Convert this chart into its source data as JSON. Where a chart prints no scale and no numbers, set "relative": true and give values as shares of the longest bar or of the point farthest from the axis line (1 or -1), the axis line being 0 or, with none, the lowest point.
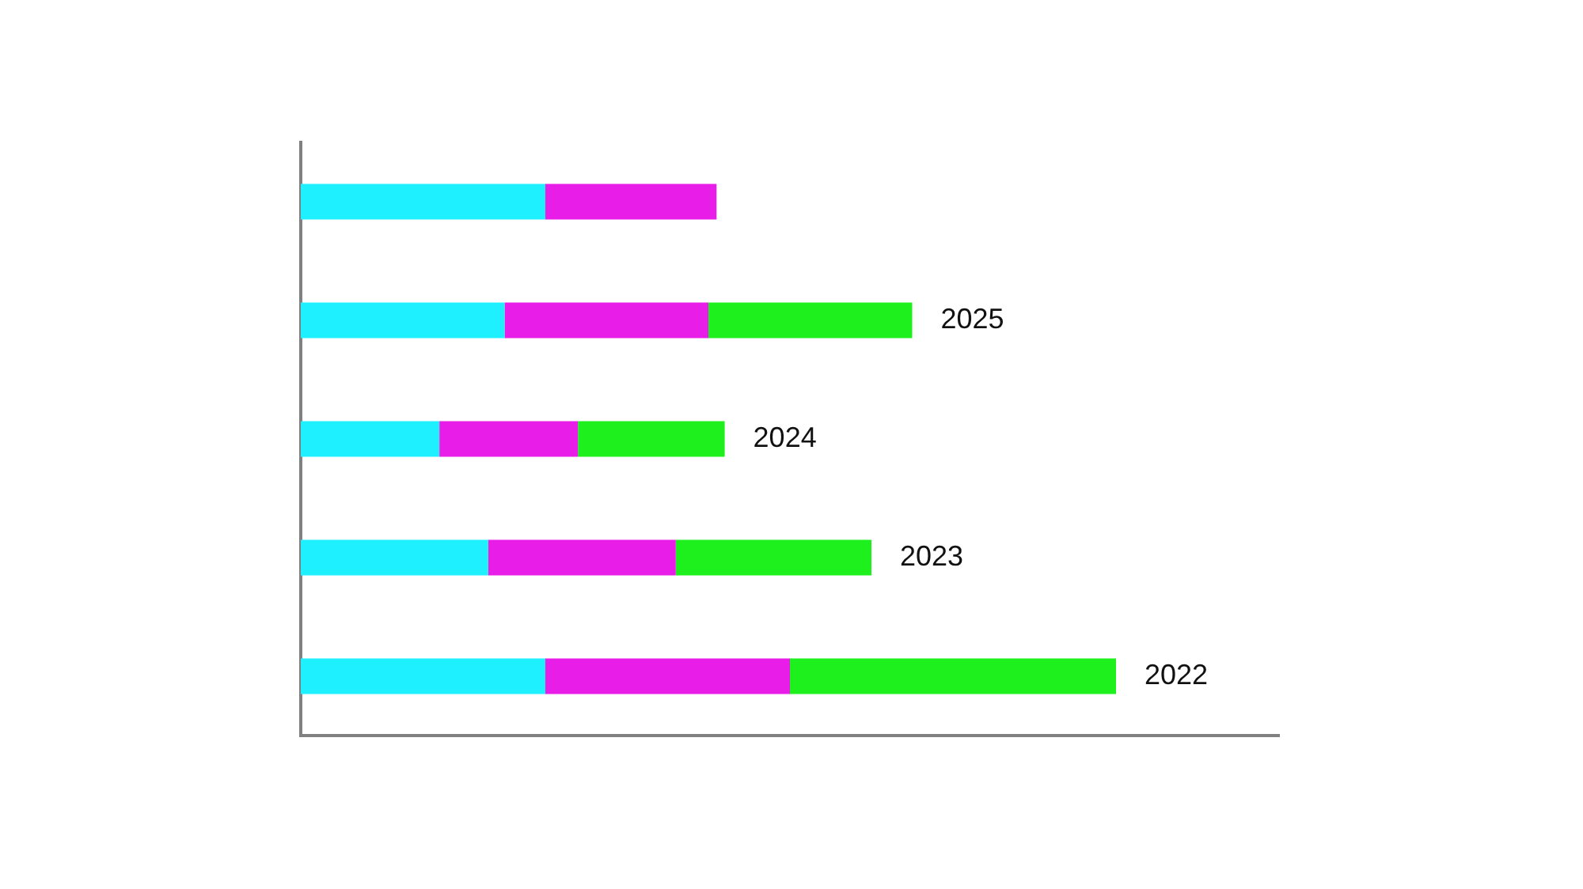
{
  "chart_data": {
    "type": "bar",
    "orientation": "horizontal",
    "stacked": true,
    "relative": true,
    "grid": false,
    "legend": false,
    "categories": [
      null,
      "2025",
      "2024",
      "2023",
      "2022"
    ],
    "series": [
      {
        "color": "#1ef0ff",
        "values": [
          0.3,
          0.25,
          0.17,
          0.23,
          0.3
        ]
      },
      {
        "color": "#e81ee8",
        "values": [
          0.21,
          0.25,
          0.17,
          0.23,
          0.3
        ]
      },
      {
        "color": "#1ef01e",
        "values": [
          null,
          0.25,
          0.18,
          0.24,
          0.4
        ]
      }
    ]
  }
}
